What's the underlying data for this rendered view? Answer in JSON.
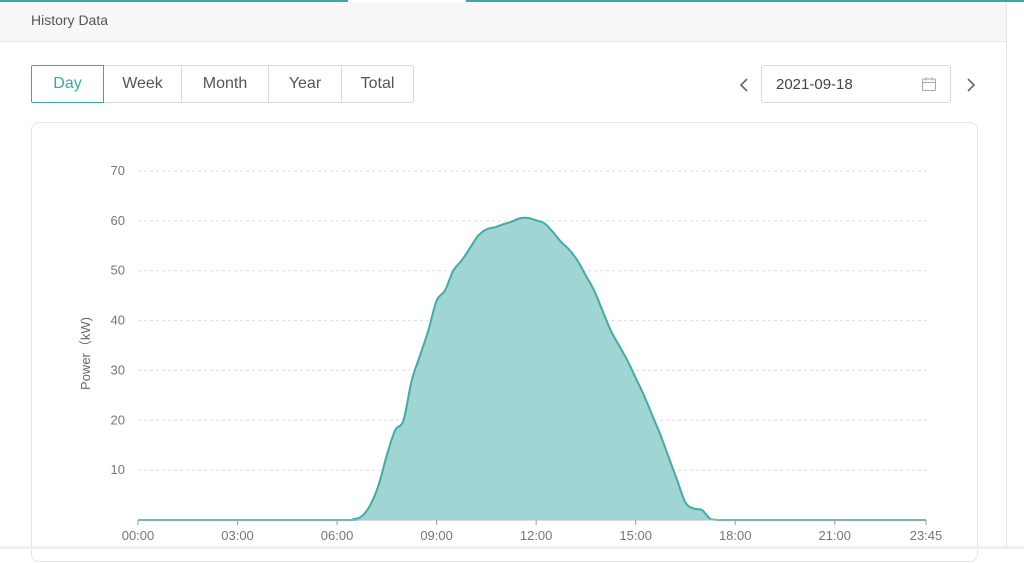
{
  "panel": {
    "title": "History Data"
  },
  "range_tabs": [
    {
      "label": "Day",
      "active": true
    },
    {
      "label": "Week",
      "active": false
    },
    {
      "label": "Month",
      "active": false
    },
    {
      "label": "Year",
      "active": false
    },
    {
      "label": "Total",
      "active": false
    }
  ],
  "date_picker": {
    "value": "2021-09-18"
  },
  "icons": {
    "prev": "chevron-left-icon",
    "next": "chevron-right-icon",
    "calendar": "calendar-icon"
  },
  "colors": {
    "accent": "#3aa9a5",
    "area_fill": "#9fd6d4",
    "area_stroke": "#44aaa6"
  },
  "chart_data": {
    "type": "area",
    "ylabel": "Power（kW)",
    "xlabel": "",
    "ylim": [
      0,
      70
    ],
    "yticks": [
      10,
      20,
      30,
      40,
      50,
      60,
      70
    ],
    "xticks": [
      "00:00",
      "03:00",
      "06:00",
      "09:00",
      "12:00",
      "15:00",
      "18:00",
      "21:00",
      "23:45"
    ],
    "grid": true,
    "series": [
      {
        "x": [
          "00:00",
          "06:00",
          "06:30",
          "06:45",
          "07:00",
          "07:15",
          "07:30",
          "07:45",
          "08:00",
          "08:15",
          "08:30",
          "08:45",
          "09:00",
          "09:15",
          "09:30",
          "09:45",
          "10:00",
          "10:15",
          "10:30",
          "10:45",
          "11:00",
          "11:15",
          "11:30",
          "11:45",
          "12:00",
          "12:15",
          "12:30",
          "12:45",
          "13:00",
          "13:15",
          "13:30",
          "13:45",
          "14:00",
          "14:15",
          "14:30",
          "14:45",
          "15:00",
          "15:15",
          "15:30",
          "15:45",
          "16:00",
          "16:15",
          "16:30",
          "16:45",
          "17:00",
          "17:15",
          "17:30",
          "17:45",
          "18:00",
          "18:15",
          "21:00",
          "23:45"
        ],
        "values": [
          0,
          0,
          0.2,
          0.8,
          3,
          7,
          13,
          18,
          20,
          28,
          33,
          38,
          44,
          46,
          50,
          52,
          54.5,
          57,
          58.3,
          58.7,
          59.3,
          59.8,
          60.5,
          60.6,
          60.1,
          59.5,
          57.8,
          55.8,
          54.2,
          52,
          49,
          46,
          42,
          38,
          35,
          32,
          28.5,
          25,
          21,
          17,
          12.5,
          8,
          3.5,
          2.3,
          2,
          0.2,
          0,
          0,
          0,
          0,
          0,
          0
        ]
      }
    ]
  }
}
